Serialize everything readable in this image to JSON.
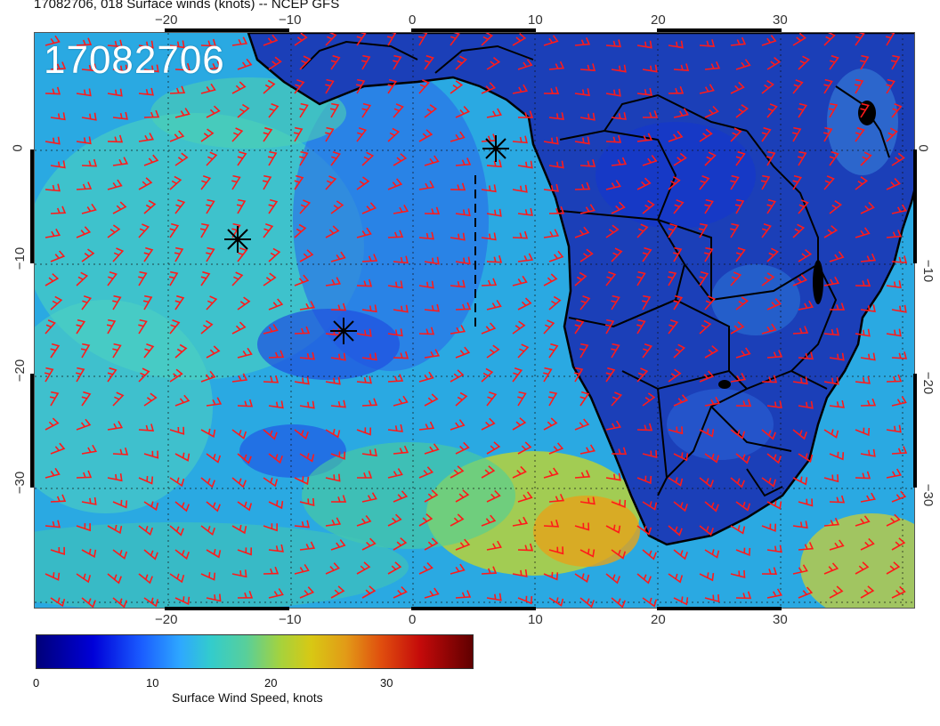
{
  "title": "17082706, 018 Surface winds (knots) -- NCEP GFS",
  "stamp": "17082706",
  "colors": {
    "barb": "#ff1a1a",
    "coast": "#000000",
    "ocean": "#2bb3d9"
  },
  "axes": {
    "lon_ticks": [
      "−20",
      "−10",
      "0",
      "10",
      "20",
      "30"
    ],
    "lat_ticks": [
      "0",
      "−10",
      "−20",
      "−30"
    ]
  },
  "markers": [
    {
      "name": "star-marker-1"
    },
    {
      "name": "star-marker-2"
    },
    {
      "name": "star-marker-3"
    }
  ],
  "colorbar": {
    "ticks": [
      "0",
      "10",
      "20",
      "30"
    ],
    "label": "Surface Wind Speed, knots"
  }
}
